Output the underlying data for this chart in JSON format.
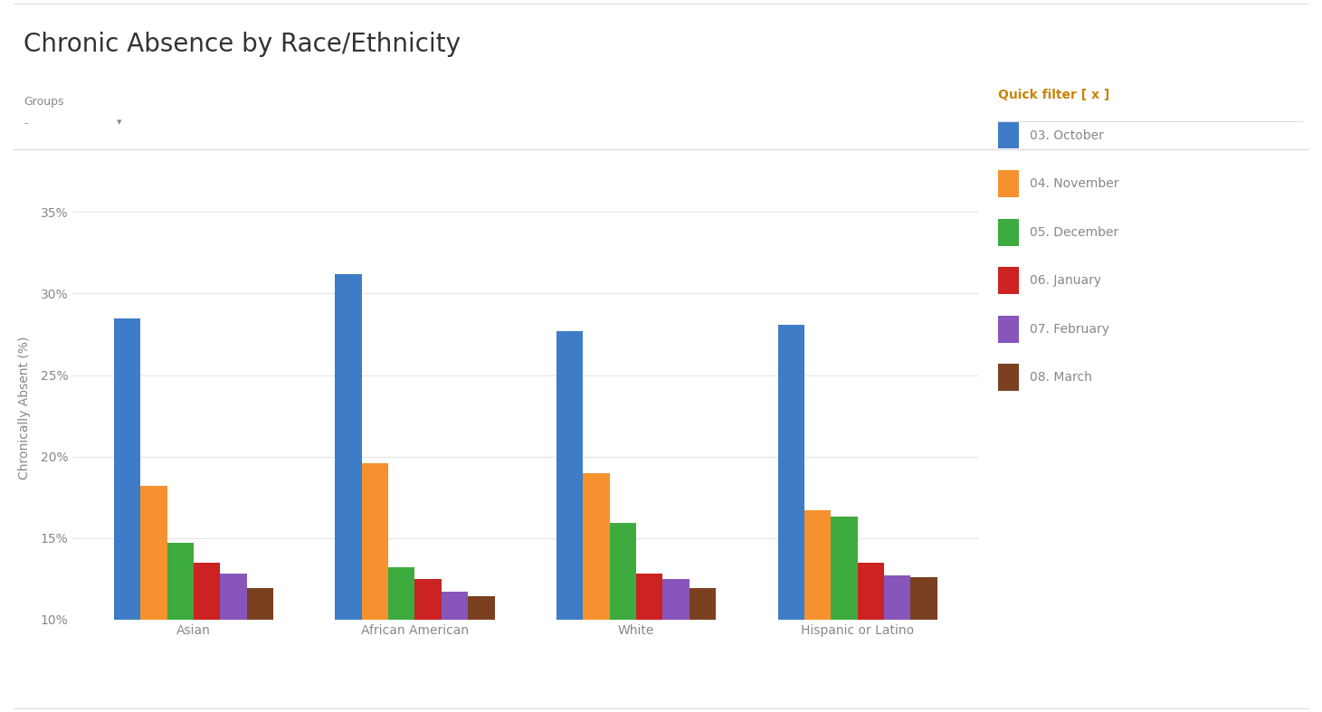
{
  "title": "Chronic Absence by Race/Ethnicity",
  "ylabel": "Chronically Absent (%)",
  "groups_label": "Groups",
  "categories": [
    "Asian",
    "African American",
    "White",
    "Hispanic or Latino"
  ],
  "series": [
    {
      "label": "03. October",
      "color": "#3e7cc7",
      "values": [
        28.5,
        31.2,
        27.7,
        28.1
      ]
    },
    {
      "label": "04. November",
      "color": "#f5922f",
      "values": [
        18.2,
        19.6,
        19.0,
        16.7
      ]
    },
    {
      "label": "05. December",
      "color": "#3dab3d",
      "values": [
        14.7,
        13.2,
        15.9,
        16.3
      ]
    },
    {
      "label": "06. January",
      "color": "#cc2222",
      "values": [
        13.5,
        12.5,
        12.8,
        13.5
      ]
    },
    {
      "label": "07. February",
      "color": "#8855bb",
      "values": [
        12.8,
        11.7,
        12.5,
        12.7
      ]
    },
    {
      "label": "08. March",
      "color": "#7a4020",
      "values": [
        11.9,
        11.4,
        11.9,
        12.6
      ]
    }
  ],
  "ylim": [
    10,
    36
  ],
  "yticks": [
    10,
    15,
    20,
    25,
    30,
    35
  ],
  "ytick_labels": [
    "10%",
    "15%",
    "20%",
    "25%",
    "30%",
    "35%"
  ],
  "quick_filter_title": "Quick filter [ x ]",
  "bar_width": 0.12,
  "background_color": "#ffffff",
  "plot_bg_color": "#ffffff",
  "grid_color": "#e5e5e5",
  "axis_label_color": "#888888",
  "tick_label_color": "#888888",
  "title_color": "#333333",
  "legend_title_color": "#c8820a",
  "separator_color": "#dddddd",
  "title_fontsize": 20,
  "axis_label_fontsize": 10,
  "tick_fontsize": 10,
  "legend_fontsize": 10,
  "groups_fontsize": 9
}
